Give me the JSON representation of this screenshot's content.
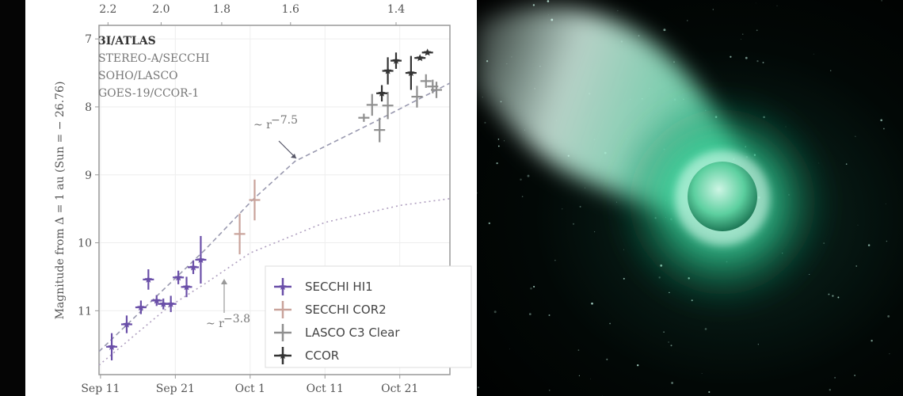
{
  "chart_data": {
    "type": "scatter",
    "title": "",
    "ylabel": "Magnitude from Δ = 1 au (Sun = − 26.76)",
    "xlabel": "",
    "ylim": [
      11.94,
      6.8
    ],
    "xlim": [
      "Sep 10.8",
      "Oct 27.7"
    ],
    "y_inverted": true,
    "grid": true,
    "x_ticks": [
      {
        "label": "Sep 11",
        "date": "Sep 11"
      },
      {
        "label": "Sep 21",
        "date": "Sep 21"
      },
      {
        "label": "Oct 1",
        "date": "Oct 1"
      },
      {
        "label": "Oct 11",
        "date": "Oct 11"
      },
      {
        "label": "Oct 21",
        "date": "Oct 21"
      }
    ],
    "y_ticks": [
      "7",
      "8",
      "9",
      "10",
      "11"
    ],
    "top_axis_ticks": [
      {
        "label": "2.2",
        "date": "Sep 12.0"
      },
      {
        "label": "2.0",
        "date": "Sep 19.1"
      },
      {
        "label": "1.8",
        "date": "Sep 27.2"
      },
      {
        "label": "1.6",
        "date": "Oct 6.4"
      },
      {
        "label": "1.4",
        "date": "Oct 20.5"
      }
    ],
    "annotation_block": {
      "object": "3I/ATLAS",
      "lines": [
        "STEREO-A/SECCHI",
        "SOHO/LASCO",
        "GOES-19/CCOR-1"
      ]
    },
    "legend_position": "bottom-right",
    "series": [
      {
        "name": "SECCHI HI1",
        "color": "#6a4fa8",
        "marker": "star",
        "points": [
          {
            "date": "Sep 12.5",
            "mag": 11.53,
            "yerr": 0.2
          },
          {
            "date": "Sep 14.5",
            "mag": 11.2,
            "yerr": 0.13
          },
          {
            "date": "Sep 16.4",
            "mag": 10.95,
            "yerr": 0.1
          },
          {
            "date": "Sep 17.4",
            "mag": 10.54,
            "yerr": 0.15
          },
          {
            "date": "Sep 18.5",
            "mag": 10.85,
            "yerr": 0.08
          },
          {
            "date": "Sep 19.4",
            "mag": 10.9,
            "yerr": 0.08
          },
          {
            "date": "Sep 20.4",
            "mag": 10.9,
            "yerr": 0.12
          },
          {
            "date": "Sep 21.4",
            "mag": 10.51,
            "yerr": 0.1
          },
          {
            "date": "Sep 22.5",
            "mag": 10.65,
            "yerr": 0.15
          },
          {
            "date": "Sep 23.4",
            "mag": 10.36,
            "yerr": 0.1
          },
          {
            "date": "Sep 24.4",
            "mag": 10.25,
            "yerr": 0.35
          }
        ]
      },
      {
        "name": "SECCHI COR2",
        "color": "#c9a39b",
        "marker": "plus",
        "points": [
          {
            "date": "Sep 29.6",
            "mag": 9.87,
            "yerr": 0.3
          },
          {
            "date": "Oct 1.6",
            "mag": 9.37,
            "yerr": 0.3
          }
        ]
      },
      {
        "name": "LASCO C3 Clear",
        "color": "#8f8f8f",
        "marker": "plus",
        "points": [
          {
            "date": "Oct 16.2",
            "mag": 8.16,
            "yerr": 0.06
          },
          {
            "date": "Oct 17.3",
            "mag": 7.97,
            "yerr": 0.16
          },
          {
            "date": "Oct 18.3",
            "mag": 8.34,
            "yerr": 0.18
          },
          {
            "date": "Oct 19.4",
            "mag": 7.98,
            "yerr": 0.2
          },
          {
            "date": "Oct 23.3",
            "mag": 7.85,
            "yerr": 0.16
          },
          {
            "date": "Oct 24.5",
            "mag": 7.62,
            "yerr": 0.1
          },
          {
            "date": "Oct 25.4",
            "mag": 7.7,
            "yerr": 0.1
          },
          {
            "date": "Oct 25.9",
            "mag": 7.75,
            "yerr": 0.12
          }
        ]
      },
      {
        "name": "CCOR",
        "color": "#333333",
        "marker": "star",
        "points": [
          {
            "date": "Oct 18.6",
            "mag": 7.8,
            "yerr": 0.12
          },
          {
            "date": "Oct 19.4",
            "mag": 7.47,
            "yerr": 0.2
          },
          {
            "date": "Oct 20.5",
            "mag": 7.32,
            "yerr": 0.12
          },
          {
            "date": "Oct 22.5",
            "mag": 7.5,
            "yerr": 0.25
          },
          {
            "date": "Oct 23.7",
            "mag": 7.28,
            "yerr": 0.03
          },
          {
            "date": "Oct 24.7",
            "mag": 7.2,
            "yerr": 0.03
          }
        ]
      }
    ],
    "fits": [
      {
        "label_base": "~ r",
        "label_exp": "−7.5",
        "style": "dashed",
        "color": "#9a9ab0",
        "points": [
          {
            "date": "Sep 10.8",
            "mag": 11.6
          },
          {
            "date": "Sep 25",
            "mag": 10.1
          },
          {
            "date": "Oct 1.5",
            "mag": 9.35
          },
          {
            "date": "Oct 7",
            "mag": 8.8
          },
          {
            "date": "Oct 18",
            "mag": 8.2
          },
          {
            "date": "Oct 27.7",
            "mag": 7.65
          }
        ]
      },
      {
        "label_base": "~ r",
        "label_exp": "−3.8",
        "style": "dotted",
        "color": "#b0a0c0",
        "points": [
          {
            "date": "Sep 10.8",
            "mag": 11.8
          },
          {
            "date": "Sep 20",
            "mag": 10.95
          },
          {
            "date": "Sep 25",
            "mag": 10.6
          },
          {
            "date": "Oct 1",
            "mag": 10.15
          },
          {
            "date": "Oct 11",
            "mag": 9.7
          },
          {
            "date": "Oct 21",
            "mag": 9.45
          },
          {
            "date": "Oct 27.7",
            "mag": 9.35
          }
        ]
      }
    ]
  },
  "illustration": {
    "subject": "comet-with-green-coma-and-tail",
    "colors": {
      "coma": "#38e0a8",
      "core": "#bff5e0",
      "background": "#000000"
    }
  }
}
